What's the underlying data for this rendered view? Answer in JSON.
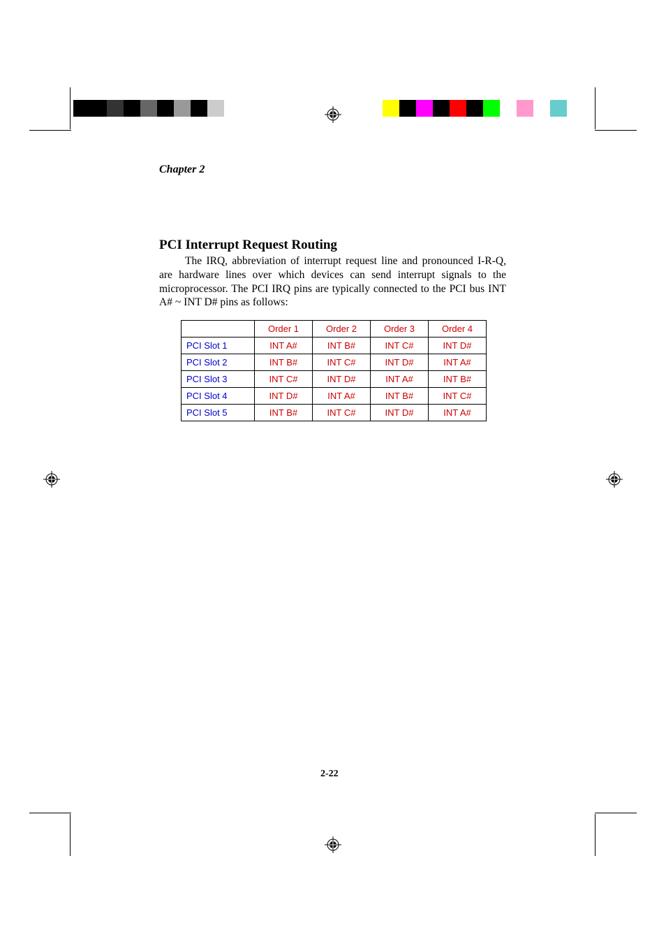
{
  "chapter_label": "Chapter 2",
  "section_heading": "PCI Interrupt Request Routing",
  "body_paragraph": "The IRQ, abbreviation of interrupt request line and pronounced I-R-Q, are hardware lines over which devices can send interrupt signals to the microprocessor. The PCI IRQ pins are typically connected to the PCI bus INT A# ~ INT D# pins as follows:",
  "page_number": "2-22",
  "table": {
    "headers": [
      "",
      "Order 1",
      "Order 2",
      "Order 3",
      "Order 4"
    ],
    "rows": [
      {
        "label": "PCI Slot 1",
        "values": [
          "INT A#",
          "INT B#",
          "INT C#",
          "INT D#"
        ]
      },
      {
        "label": "PCI Slot 2",
        "values": [
          "INT B#",
          "INT C#",
          "INT D#",
          "INT A#"
        ]
      },
      {
        "label": "PCI Slot 3",
        "values": [
          "INT C#",
          "INT D#",
          "INT A#",
          "INT B#"
        ]
      },
      {
        "label": "PCI Slot 4",
        "values": [
          "INT D#",
          "INT A#",
          "INT B#",
          "INT C#"
        ]
      },
      {
        "label": "PCI Slot 5",
        "values": [
          "INT B#",
          "INT C#",
          "INT D#",
          "INT A#"
        ]
      }
    ],
    "header_color": "#cc0000",
    "rowlabel_color": "#0000cc",
    "value_color": "#cc0000",
    "border_color": "#000000"
  },
  "color_bar_left": [
    "#000000",
    "#000000",
    "#333333",
    "#000000",
    "#666666",
    "#000000",
    "#999999",
    "#000000",
    "#cccccc",
    "#ffffff",
    "#ffffff"
  ],
  "color_bar_right": [
    "#ffff00",
    "#000000",
    "#ff00ff",
    "#000000",
    "#ff0000",
    "#000000",
    "#00ff00",
    "#ffffff",
    "#ff99cc",
    "#ffffff",
    "#66cccc"
  ]
}
